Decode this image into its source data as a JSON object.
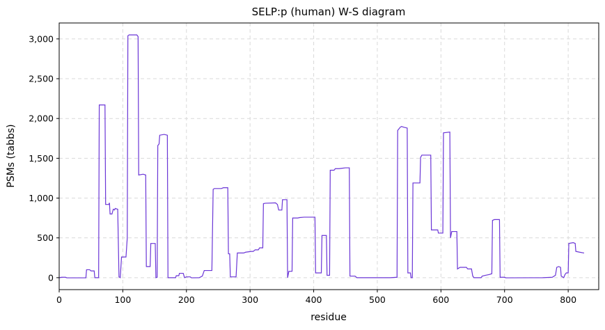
{
  "chart_data": {
    "type": "line",
    "title": "SELP:p (human) W-S diagram",
    "xlabel": "residue",
    "ylabel": "PSMs (tabbs)",
    "xlim": [
      0,
      848
    ],
    "ylim": [
      -150,
      3200
    ],
    "xticks": [
      0,
      100,
      200,
      300,
      400,
      500,
      600,
      700,
      800
    ],
    "yticks": [
      0,
      500,
      1000,
      1500,
      2000,
      2500,
      3000
    ],
    "ytick_labels": [
      "0",
      "500",
      "1,000",
      "1,500",
      "2,000",
      "2,500",
      "3,000"
    ],
    "grid": true,
    "line_color": "#6a35d6",
    "series": [
      {
        "points": [
          [
            0,
            0
          ],
          [
            4,
            5
          ],
          [
            10,
            5
          ],
          [
            12,
            -2
          ],
          [
            42,
            -2
          ],
          [
            43,
            100
          ],
          [
            48,
            100
          ],
          [
            50,
            85
          ],
          [
            55,
            85
          ],
          [
            56,
            0
          ],
          [
            62,
            0
          ],
          [
            63,
            2170
          ],
          [
            72,
            2170
          ],
          [
            73,
            920
          ],
          [
            78,
            920
          ],
          [
            79,
            940
          ],
          [
            80,
            800
          ],
          [
            83,
            800
          ],
          [
            85,
            860
          ],
          [
            87,
            850
          ],
          [
            88,
            870
          ],
          [
            92,
            860
          ],
          [
            94,
            10
          ],
          [
            96,
            0
          ],
          [
            98,
            260
          ],
          [
            105,
            260
          ],
          [
            107,
            500
          ],
          [
            108,
            3040
          ],
          [
            110,
            3050
          ],
          [
            122,
            3050
          ],
          [
            124,
            3030
          ],
          [
            125,
            1290
          ],
          [
            132,
            1300
          ],
          [
            136,
            1290
          ],
          [
            137,
            140
          ],
          [
            143,
            140
          ],
          [
            144,
            430
          ],
          [
            151,
            430
          ],
          [
            152,
            0
          ],
          [
            154,
            5
          ],
          [
            155,
            1660
          ],
          [
            157,
            1680
          ],
          [
            158,
            1790
          ],
          [
            165,
            1800
          ],
          [
            170,
            1790
          ],
          [
            171,
            0
          ],
          [
            183,
            0
          ],
          [
            184,
            25
          ],
          [
            188,
            25
          ],
          [
            189,
            55
          ],
          [
            195,
            55
          ],
          [
            197,
            0
          ],
          [
            200,
            10
          ],
          [
            206,
            10
          ],
          [
            208,
            -2
          ],
          [
            220,
            0
          ],
          [
            225,
            20
          ],
          [
            228,
            90
          ],
          [
            240,
            90
          ],
          [
            242,
            1110
          ],
          [
            244,
            1120
          ],
          [
            255,
            1120
          ],
          [
            258,
            1130
          ],
          [
            265,
            1130
          ],
          [
            266,
            300
          ],
          [
            268,
            300
          ],
          [
            269,
            10
          ],
          [
            278,
            10
          ],
          [
            280,
            310
          ],
          [
            290,
            310
          ],
          [
            293,
            320
          ],
          [
            302,
            330
          ],
          [
            305,
            330
          ],
          [
            308,
            350
          ],
          [
            313,
            350
          ],
          [
            315,
            375
          ],
          [
            320,
            375
          ],
          [
            321,
            930
          ],
          [
            324,
            935
          ],
          [
            340,
            940
          ],
          [
            343,
            920
          ],
          [
            345,
            850
          ],
          [
            350,
            850
          ],
          [
            351,
            980
          ],
          [
            358,
            980
          ],
          [
            359,
            0
          ],
          [
            361,
            80
          ],
          [
            366,
            80
          ],
          [
            367,
            750
          ],
          [
            375,
            750
          ],
          [
            378,
            755
          ],
          [
            385,
            760
          ],
          [
            402,
            760
          ],
          [
            403,
            60
          ],
          [
            412,
            60
          ],
          [
            413,
            530
          ],
          [
            420,
            530
          ],
          [
            421,
            30
          ],
          [
            425,
            30
          ],
          [
            426,
            1350
          ],
          [
            432,
            1350
          ],
          [
            434,
            1370
          ],
          [
            440,
            1370
          ],
          [
            445,
            1375
          ],
          [
            450,
            1380
          ],
          [
            456,
            1380
          ],
          [
            457,
            20
          ],
          [
            465,
            20
          ],
          [
            468,
            0
          ],
          [
            480,
            0
          ],
          [
            490,
            0
          ],
          [
            500,
            0
          ],
          [
            510,
            0
          ],
          [
            520,
            0
          ],
          [
            531,
            5
          ],
          [
            532,
            1850
          ],
          [
            536,
            1890
          ],
          [
            538,
            1900
          ],
          [
            542,
            1890
          ],
          [
            547,
            1880
          ],
          [
            548,
            60
          ],
          [
            552,
            60
          ],
          [
            553,
            0
          ],
          [
            555,
            0
          ],
          [
            556,
            1190
          ],
          [
            567,
            1190
          ],
          [
            568,
            1510
          ],
          [
            570,
            1540
          ],
          [
            584,
            1540
          ],
          [
            585,
            600
          ],
          [
            595,
            600
          ],
          [
            596,
            560
          ],
          [
            603,
            560
          ],
          [
            604,
            1820
          ],
          [
            614,
            1830
          ],
          [
            615,
            500
          ],
          [
            617,
            580
          ],
          [
            625,
            580
          ],
          [
            626,
            110
          ],
          [
            630,
            130
          ],
          [
            640,
            130
          ],
          [
            642,
            110
          ],
          [
            648,
            110
          ],
          [
            650,
            20
          ],
          [
            652,
            0
          ],
          [
            663,
            0
          ],
          [
            665,
            20
          ],
          [
            670,
            30
          ],
          [
            676,
            40
          ],
          [
            680,
            50
          ],
          [
            681,
            720
          ],
          [
            684,
            730
          ],
          [
            692,
            730
          ],
          [
            693,
            5
          ],
          [
            700,
            5
          ],
          [
            702,
            -2
          ],
          [
            760,
            0
          ],
          [
            775,
            5
          ],
          [
            780,
            30
          ],
          [
            782,
            130
          ],
          [
            785,
            140
          ],
          [
            788,
            130
          ],
          [
            789,
            20
          ],
          [
            793,
            0
          ],
          [
            795,
            40
          ],
          [
            797,
            60
          ],
          [
            800,
            60
          ],
          [
            801,
            430
          ],
          [
            808,
            440
          ],
          [
            811,
            430
          ],
          [
            812,
            330
          ],
          [
            818,
            320
          ],
          [
            825,
            310
          ]
        ]
      }
    ]
  }
}
